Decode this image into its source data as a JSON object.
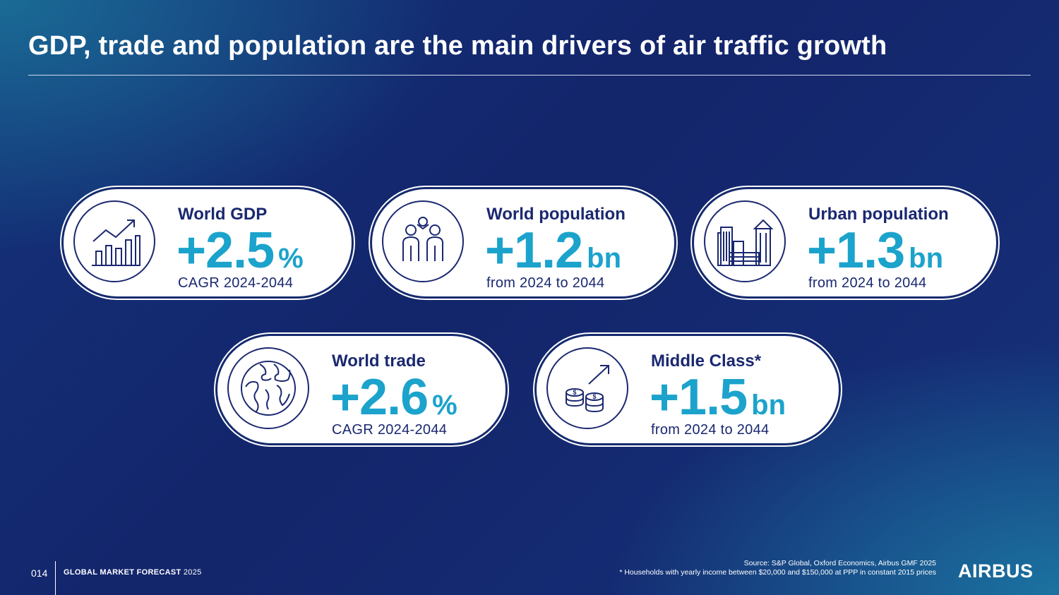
{
  "header": {
    "title": "GDP, trade and population are the main drivers of air traffic growth"
  },
  "cards": [
    {
      "label": "World GDP",
      "value": "+2.5",
      "unit": "%",
      "sub": "CAGR 2024-2044",
      "icon": "bar-chart-growth-icon"
    },
    {
      "label": "World population",
      "value": "+1.2",
      "unit": "bn",
      "sub": "from 2024 to 2044",
      "icon": "people-icon"
    },
    {
      "label": "Urban population",
      "value": "+1.3",
      "unit": "bn",
      "sub": "from 2024 to 2044",
      "icon": "city-buildings-icon"
    },
    {
      "label": "World trade",
      "value": "+2.6",
      "unit": "%",
      "sub": "CAGR 2024-2044",
      "icon": "globe-icon"
    },
    {
      "label": "Middle Class*",
      "value": "+1.5",
      "unit": "bn",
      "sub": "from 2024 to 2044",
      "icon": "coins-growth-icon"
    }
  ],
  "footer": {
    "page_number": "014",
    "publication_bold": "GLOBAL MARKET FORECAST",
    "publication_year": "2025",
    "source_line": "Source: S&P Global, Oxford Economics,  Airbus GMF 2025",
    "footnote": "* Households with yearly income between $20,000 and $150,000 at PPP in constant 2015 prices",
    "logo_text": "AIRBUS"
  },
  "colors": {
    "navy": "#1a2870",
    "accent": "#1ba3cc",
    "background": "#13256b"
  }
}
